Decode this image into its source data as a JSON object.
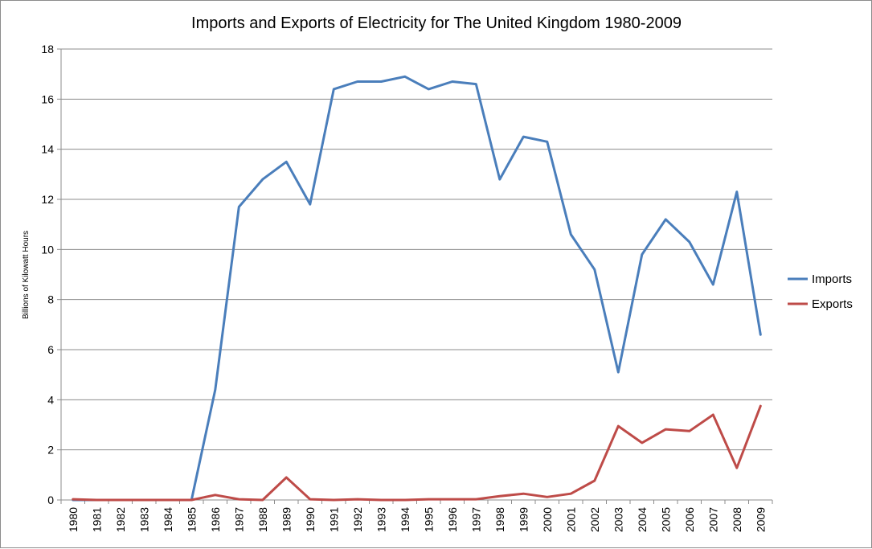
{
  "chart_data": {
    "type": "line",
    "title": "Imports and Exports of Electricity for The United Kingdom 1980-2009",
    "xlabel": "",
    "ylabel": "Billions of Kilowatt Hours",
    "ylim": [
      0,
      18
    ],
    "yticks": [
      0,
      2,
      4,
      6,
      8,
      10,
      12,
      14,
      16,
      18
    ],
    "grid": true,
    "legend_position": "right",
    "categories": [
      "1980",
      "1981",
      "1982",
      "1983",
      "1984",
      "1985",
      "1986",
      "1987",
      "1988",
      "1989",
      "1990",
      "1991",
      "1992",
      "1993",
      "1994",
      "1995",
      "1996",
      "1997",
      "1998",
      "1999",
      "2000",
      "2001",
      "2002",
      "2003",
      "2004",
      "2005",
      "2006",
      "2007",
      "2008",
      "2009"
    ],
    "series": [
      {
        "name": "Imports",
        "color": "#4a7ebb",
        "values": [
          0,
          0,
          0,
          0,
          0,
          0,
          4.4,
          11.7,
          12.8,
          13.5,
          11.8,
          16.4,
          16.7,
          16.7,
          16.9,
          16.4,
          16.7,
          16.6,
          12.8,
          14.5,
          14.3,
          10.6,
          9.2,
          5.1,
          9.8,
          11.2,
          10.3,
          8.6,
          12.3,
          6.6
        ]
      },
      {
        "name": "Exports",
        "color": "#be4b48",
        "values": [
          0.03,
          0,
          0,
          0,
          0,
          0,
          0.2,
          0.03,
          0,
          0.9,
          0.03,
          0,
          0.03,
          0,
          0,
          0.03,
          0.03,
          0.03,
          0.15,
          0.25,
          0.12,
          0.25,
          0.77,
          2.95,
          2.28,
          2.82,
          2.75,
          3.4,
          1.28,
          3.75
        ]
      }
    ]
  }
}
